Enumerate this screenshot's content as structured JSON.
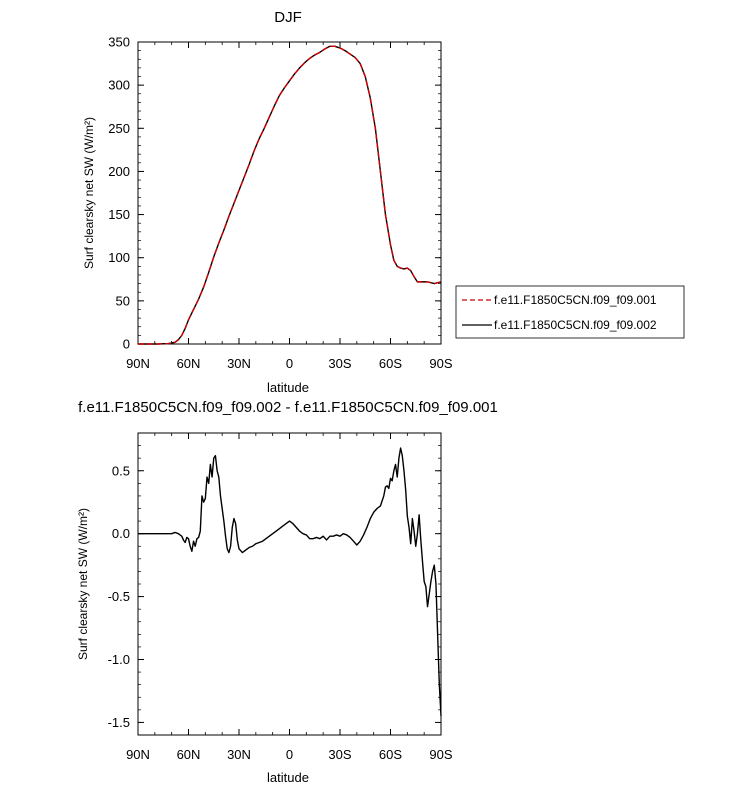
{
  "chart_data": [
    {
      "type": "line",
      "title": "DJF",
      "xlabel": "latitude",
      "ylabel": "Surf clearsky net SW (W/m²)",
      "xlim": [
        90,
        -90
      ],
      "ylim": [
        0,
        350
      ],
      "x_ticks": [
        90,
        60,
        30,
        0,
        -30,
        -60,
        -90
      ],
      "x_tick_labels": [
        "90N",
        "60N",
        "30N",
        "0",
        "30S",
        "60S",
        "90S"
      ],
      "y_ticks": [
        0,
        50,
        100,
        150,
        200,
        250,
        300,
        350
      ],
      "y_tick_labels": [
        "0",
        "50",
        "100",
        "150",
        "200",
        "250",
        "300",
        "350"
      ],
      "legend_position": "right",
      "series": [
        {
          "name": "f.e11.F1850C5CN.f09_f09.001",
          "color": "#cc0000",
          "dash": "dashed",
          "x": [
            90,
            84,
            78,
            72,
            68,
            66,
            64,
            62,
            60,
            57,
            54,
            51,
            48,
            45,
            42,
            39,
            36,
            33,
            30,
            27,
            24,
            21,
            18,
            15,
            12,
            9,
            6,
            3,
            0,
            -3,
            -6,
            -9,
            -12,
            -15,
            -18,
            -21,
            -24,
            -27,
            -30,
            -33,
            -36,
            -39,
            -42,
            -45,
            -48,
            -51,
            -54,
            -57,
            -60,
            -62,
            -64,
            -66,
            -68,
            -70,
            -72,
            -74,
            -76,
            -78,
            -80,
            -82,
            -84,
            -86,
            -88,
            -90
          ],
          "y": [
            0,
            0,
            0,
            0.5,
            2,
            5,
            10,
            18,
            28,
            40,
            52,
            66,
            83,
            101,
            117,
            132,
            148,
            163,
            178,
            193,
            208,
            224,
            238,
            250,
            263,
            276,
            288,
            297,
            305,
            313,
            320,
            326,
            331,
            335,
            338,
            342,
            345,
            345,
            343,
            340,
            336,
            332,
            325,
            310,
            285,
            250,
            200,
            150,
            115,
            97,
            90,
            88,
            87,
            88,
            85,
            78,
            72,
            72,
            72,
            72,
            71,
            70,
            71,
            72
          ]
        },
        {
          "name": "f.e11.F1850C5CN.f09_f09.002",
          "color": "#000000",
          "dash": "solid",
          "x": [
            90,
            84,
            78,
            72,
            68,
            66,
            64,
            62,
            60,
            57,
            54,
            51,
            48,
            45,
            42,
            39,
            36,
            33,
            30,
            27,
            24,
            21,
            18,
            15,
            12,
            9,
            6,
            3,
            0,
            -3,
            -6,
            -9,
            -12,
            -15,
            -18,
            -21,
            -24,
            -27,
            -30,
            -33,
            -36,
            -39,
            -42,
            -45,
            -48,
            -51,
            -54,
            -57,
            -60,
            -62,
            -64,
            -66,
            -68,
            -70,
            -72,
            -74,
            -76,
            -78,
            -80,
            -82,
            -84,
            -86,
            -88,
            -90
          ],
          "y": [
            0,
            0,
            0,
            0.5,
            2,
            5,
            10,
            18,
            28,
            40,
            52,
            66,
            83,
            101,
            117,
            132,
            148,
            163,
            178,
            193,
            208,
            224,
            238,
            250,
            263,
            276,
            288,
            297,
            305,
            313,
            320,
            326,
            331,
            335,
            338,
            342,
            345,
            345,
            343,
            340,
            336,
            332,
            325,
            310,
            285,
            250,
            200,
            150,
            115,
            97,
            90,
            88,
            87,
            88,
            85,
            78,
            72,
            72,
            72,
            72,
            71,
            70,
            71,
            72
          ]
        }
      ]
    },
    {
      "type": "line",
      "title": "f.e11.F1850C5CN.f09_f09.002 - f.e11.F1850C5CN.f09_f09.001",
      "xlabel": "latitude",
      "ylabel": "Surf clearsky net SW (W/m²)",
      "xlim": [
        90,
        -90
      ],
      "ylim": [
        -1.6,
        0.8
      ],
      "x_ticks": [
        90,
        60,
        30,
        0,
        -30,
        -60,
        -90
      ],
      "x_tick_labels": [
        "90N",
        "60N",
        "30N",
        "0",
        "30S",
        "60S",
        "90S"
      ],
      "y_ticks": [
        0.5,
        0.0,
        -0.5,
        -1.0,
        -1.5
      ],
      "y_tick_labels": [
        "0.5",
        "0.0",
        "-0.5",
        "-1.0",
        "-1.5"
      ],
      "series": [
        {
          "color": "#000000",
          "dash": "solid",
          "x": [
            90,
            80,
            70,
            68,
            66,
            64,
            63,
            62,
            61,
            60,
            59,
            58,
            57,
            56,
            55,
            54,
            53,
            52,
            51,
            50,
            49,
            48,
            47,
            46,
            45,
            44,
            43,
            42,
            41,
            40,
            39,
            38,
            37,
            36,
            35,
            34,
            33,
            32,
            31,
            30,
            28,
            26,
            24,
            22,
            20,
            18,
            16,
            14,
            12,
            10,
            8,
            6,
            4,
            2,
            0,
            -2,
            -4,
            -6,
            -8,
            -10,
            -12,
            -14,
            -16,
            -18,
            -20,
            -22,
            -24,
            -26,
            -28,
            -30,
            -32,
            -34,
            -36,
            -38,
            -40,
            -42,
            -44,
            -46,
            -48,
            -50,
            -52,
            -54,
            -56,
            -57,
            -58,
            -59,
            -60,
            -61,
            -62,
            -63,
            -64,
            -65,
            -66,
            -67,
            -68,
            -69,
            -70,
            -71,
            -72,
            -73,
            -74,
            -75,
            -76,
            -77,
            -78,
            -79,
            -80,
            -81,
            -82,
            -83,
            -84,
            -85,
            -86,
            -87,
            -88,
            -89,
            -90
          ],
          "y": [
            0,
            0,
            0,
            0.01,
            0.0,
            -0.02,
            -0.05,
            -0.07,
            -0.03,
            -0.04,
            -0.1,
            -0.14,
            -0.06,
            -0.1,
            -0.04,
            -0.03,
            0.02,
            0.3,
            0.25,
            0.28,
            0.45,
            0.4,
            0.55,
            0.45,
            0.6,
            0.62,
            0.5,
            0.45,
            0.3,
            0.2,
            0.1,
            -0.02,
            -0.12,
            -0.15,
            -0.1,
            0.05,
            0.12,
            0.08,
            -0.05,
            -0.12,
            -0.15,
            -0.13,
            -0.11,
            -0.1,
            -0.08,
            -0.07,
            -0.06,
            -0.04,
            -0.02,
            0.0,
            0.02,
            0.04,
            0.06,
            0.08,
            0.1,
            0.08,
            0.05,
            0.02,
            0.0,
            -0.01,
            -0.04,
            -0.04,
            -0.03,
            -0.04,
            -0.02,
            -0.05,
            -0.02,
            -0.02,
            -0.01,
            -0.02,
            0.0,
            -0.01,
            -0.03,
            -0.06,
            -0.09,
            -0.06,
            -0.01,
            0.05,
            0.12,
            0.17,
            0.2,
            0.22,
            0.3,
            0.37,
            0.38,
            0.36,
            0.44,
            0.42,
            0.5,
            0.55,
            0.45,
            0.6,
            0.68,
            0.62,
            0.5,
            0.35,
            0.14,
            0.05,
            -0.08,
            0.12,
            0.02,
            -0.1,
            0.0,
            0.15,
            -0.05,
            -0.22,
            -0.38,
            -0.42,
            -0.58,
            -0.48,
            -0.38,
            -0.3,
            -0.25,
            -0.4,
            -0.8,
            -1.2,
            -1.45
          ]
        }
      ]
    }
  ]
}
